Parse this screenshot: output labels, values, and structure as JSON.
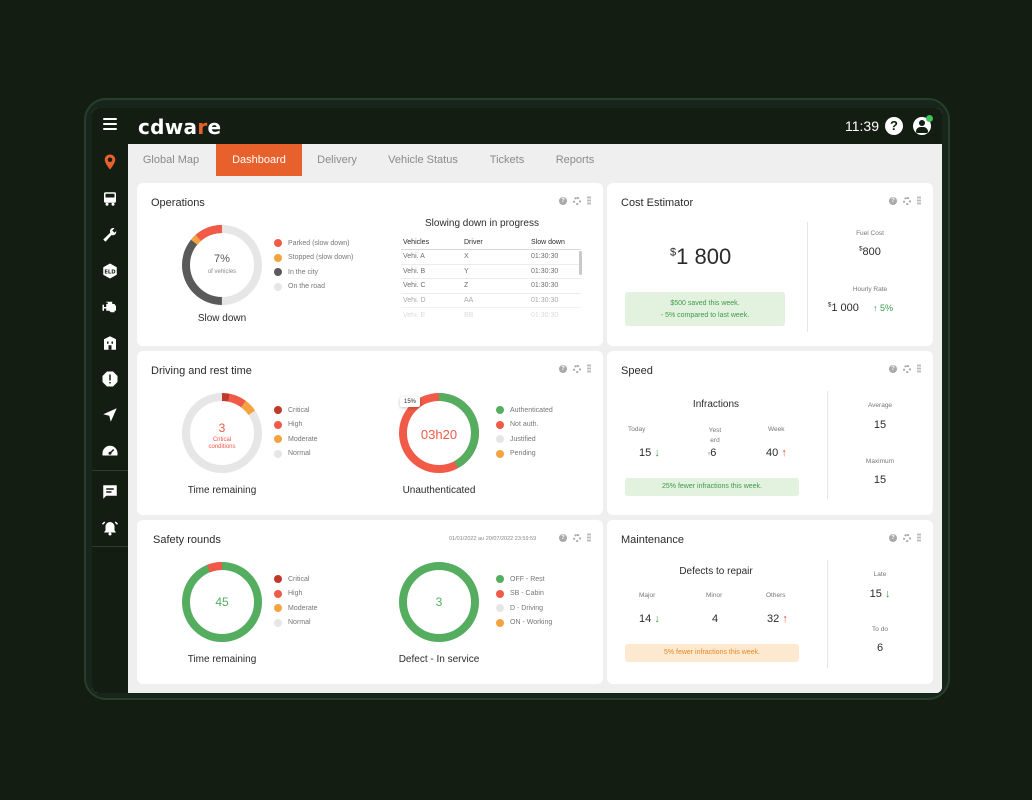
{
  "app": {
    "logo_pre": "cdwa",
    "logo_accent": "r",
    "logo_post": "e",
    "time": "11:39",
    "help": "?"
  },
  "sidebar": {
    "items": [
      "location-pin-icon",
      "truck-icon",
      "wrench-icon",
      "eld-icon",
      "engine-icon",
      "building-icon",
      "alert-hexagon-icon",
      "navigation-arrow-icon",
      "speedometer-icon",
      "chat-icon",
      "alarm-icon"
    ]
  },
  "tabs": [
    {
      "label": "Global Map"
    },
    {
      "label": "Dashboard",
      "active": true
    },
    {
      "label": "Delivery"
    },
    {
      "label": "Vehicle Status"
    },
    {
      "label": "Tickets"
    },
    {
      "label": "Reports"
    }
  ],
  "colors": {
    "accent": "#e8612c",
    "critical": "#c0392b",
    "high": "#f05a47",
    "moderate": "#f4a340",
    "normal": "#e2e2e2",
    "green": "#55ad5f",
    "dark": "#5a5a5a"
  },
  "operations": {
    "title": "Operations",
    "donut_value": "7%",
    "donut_sub": "of vehicles",
    "donut_label": "Slow down",
    "legend": [
      "Parked (slow down)",
      "Stopped (slow down)",
      "In the city",
      "On the road"
    ],
    "table_title": "Slowing down in progress",
    "columns": [
      "Vehicles",
      "Driver",
      "Slow down"
    ],
    "rows": [
      [
        "Vehi. A",
        "X",
        "01:30:30"
      ],
      [
        "Vehi. B",
        "Y",
        "01:30:30"
      ],
      [
        "Vehi. C",
        "Z",
        "01:30:30"
      ],
      [
        "Vehi. D",
        "AA",
        "01:30:30"
      ],
      [
        "Vehi. E",
        "BB",
        "01:30:30"
      ]
    ]
  },
  "cost": {
    "title": "Cost Estimator",
    "currency": "$",
    "amount": "1 800",
    "saved": "$500 saved this week.",
    "compared": "- 5% compared to last week.",
    "fuel_label": "Fuel Cost",
    "fuel_currency": "$",
    "fuel_value": "800",
    "hourly_label": "Hourly Rate",
    "hourly_currency": "$",
    "hourly_value": "1 000",
    "hourly_change": "5%"
  },
  "driving": {
    "title": "Driving and rest time",
    "d1_value": "3",
    "d1_sub1": "Critical",
    "d1_sub2": "conditions",
    "d1_label": "Time remaining",
    "legend1": [
      "Critical",
      "High",
      "Moderate",
      "Normal"
    ],
    "d2_value": "03h20",
    "d2_badge": "15%",
    "d2_label": "Unauthenticated",
    "legend2": [
      "Authenticated",
      "Not auth.",
      "Justified",
      "Pending"
    ]
  },
  "speed": {
    "title": "Speed",
    "subtitle": "Infractions",
    "today_label": "Today",
    "today_value": "15",
    "yest_label1": "Yest",
    "yest_label2": "erd",
    "yest_prefix": "ᵒ",
    "yest_value": "6",
    "week_label": "Week",
    "week_value": "40",
    "note": "25% fewer infractions this week.",
    "avg_label": "Average",
    "avg_value": "15",
    "max_label": "Maximum",
    "max_value": "15"
  },
  "safety": {
    "title": "Safety rounds",
    "date_range": "01/01/2022 au 20/07/2022 23:59:59",
    "d1_value": "45",
    "d1_label": "Time remaining",
    "legend1": [
      "Critical",
      "High",
      "Moderate",
      "Normal"
    ],
    "d2_value": "3",
    "d2_label": "Defect - In service",
    "legend2": [
      "OFF - Rest",
      "SB - Cabin",
      "D - Driving",
      "ON - Working"
    ]
  },
  "maintenance": {
    "title": "Maintenance",
    "subtitle": "Defects to repair",
    "major_label": "Major",
    "major_value": "14",
    "minor_label": "Minor",
    "minor_value": "4",
    "others_label": "Others",
    "others_value": "32",
    "note": "5% fewer infractions this week.",
    "late_label": "Late",
    "late_value": "15",
    "todo_label": "To do",
    "todo_value": "6"
  }
}
